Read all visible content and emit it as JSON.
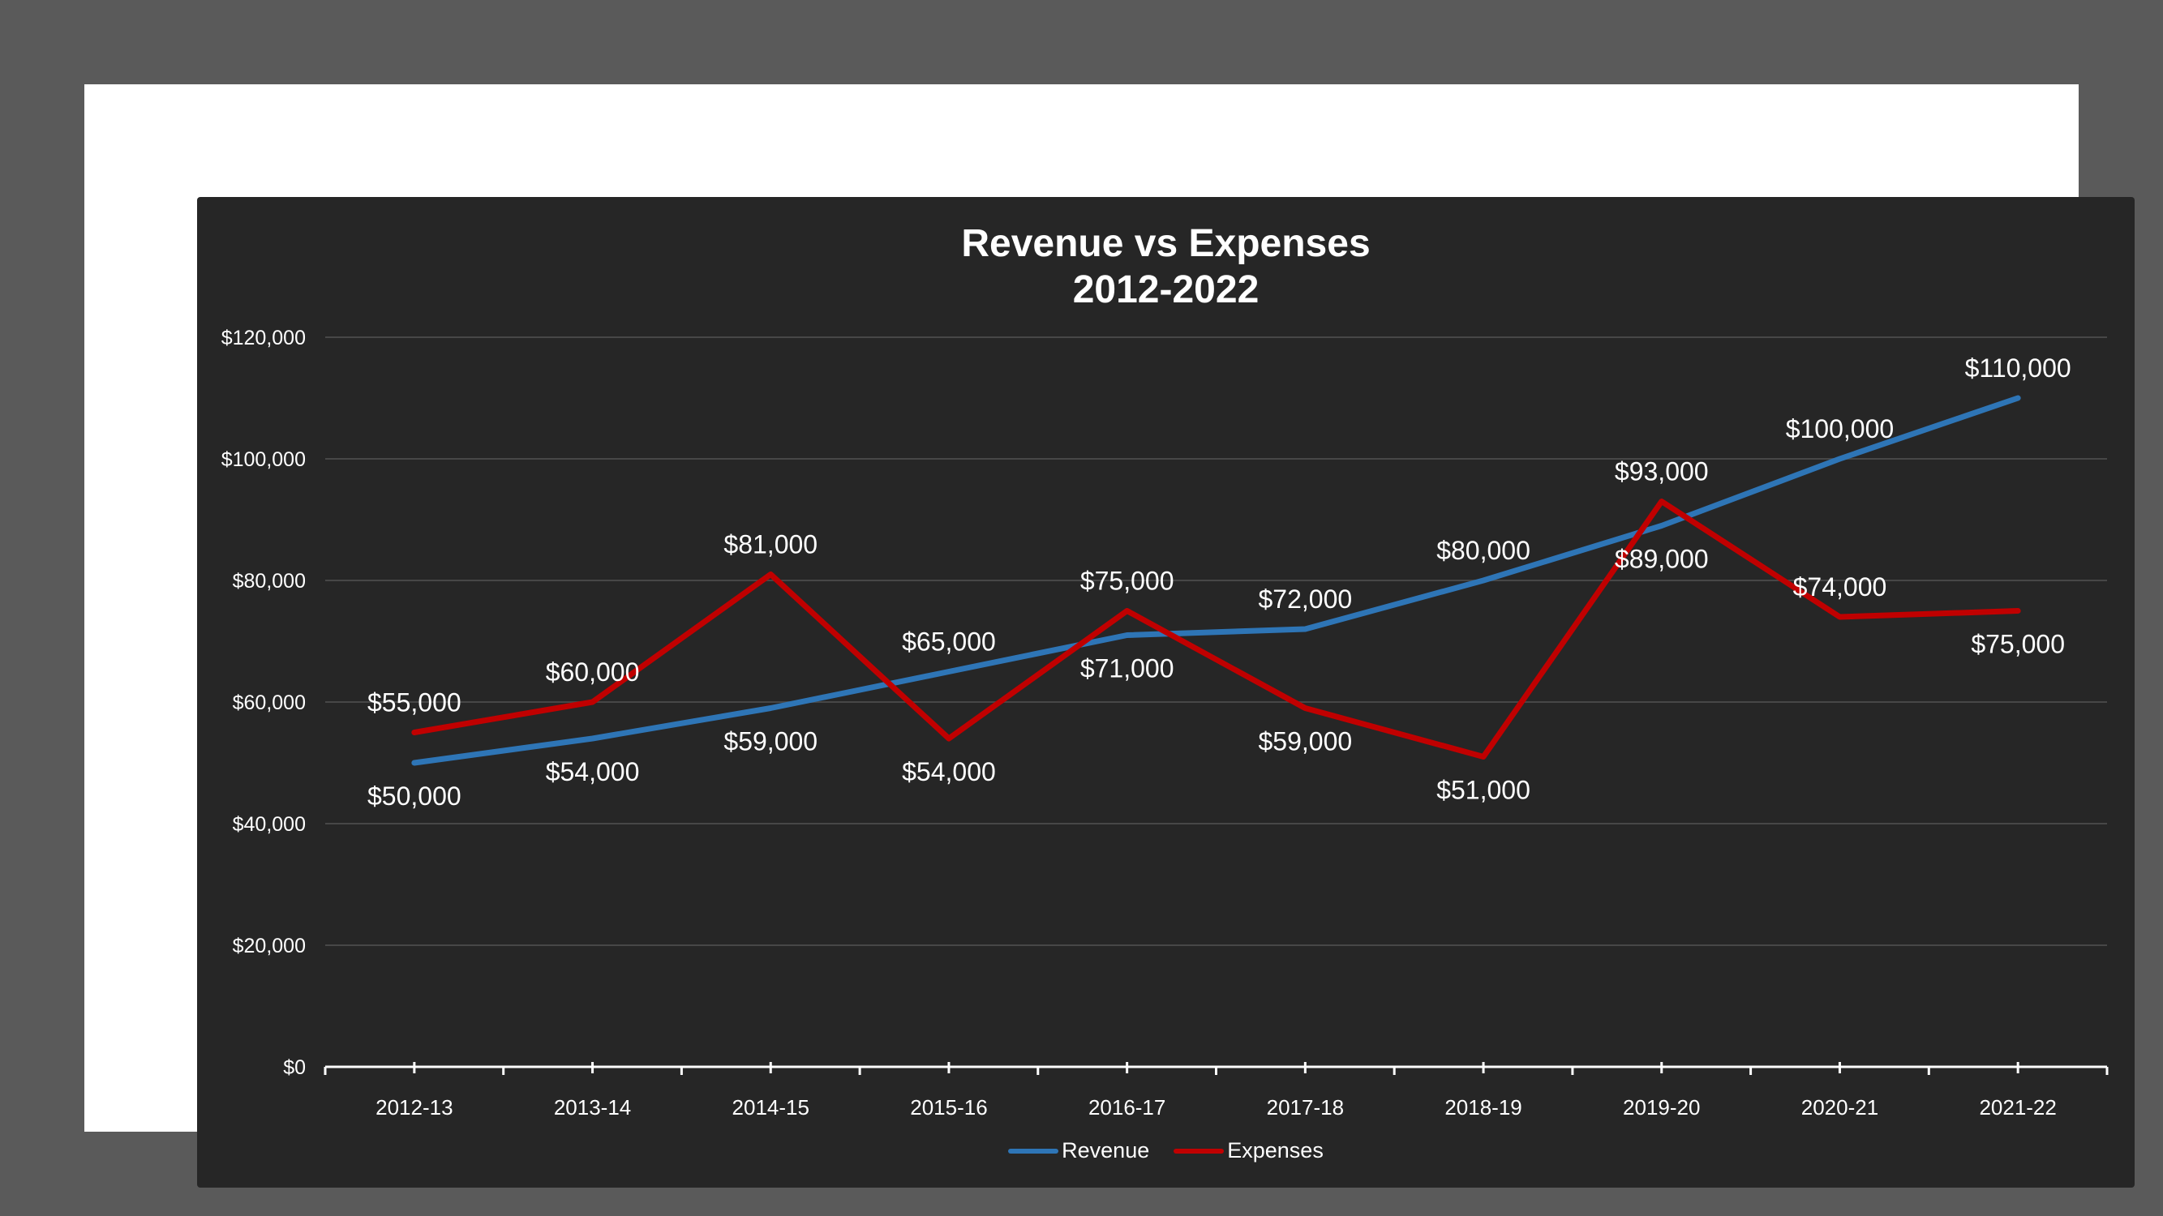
{
  "chart_data": {
    "type": "line",
    "title": [
      "Revenue vs Expenses",
      "2012-2022"
    ],
    "xlabel": "",
    "ylabel": "",
    "categories": [
      "2012-13",
      "2013-14",
      "2014-15",
      "2015-16",
      "2016-17",
      "2017-18",
      "2018-19",
      "2019-20",
      "2020-21",
      "2021-22"
    ],
    "ylim": [
      0,
      120000
    ],
    "yticks": [
      0,
      20000,
      40000,
      60000,
      80000,
      100000,
      120000
    ],
    "ytick_labels": [
      "$0",
      "$20,000",
      "$40,000",
      "$60,000",
      "$80,000",
      "$100,000",
      "$120,000"
    ],
    "grid": true,
    "legend_position": "bottom",
    "series": [
      {
        "name": "Revenue",
        "color": "#2e75b6",
        "values": [
          50000,
          54000,
          59000,
          65000,
          71000,
          72000,
          80000,
          89000,
          100000,
          110000
        ],
        "labels": [
          "$50,000",
          "$54,000",
          "$59,000",
          "$65,000",
          "$71,000",
          "$72,000",
          "$80,000",
          "$89,000",
          "$100,000",
          "$110,000"
        ],
        "label_side": [
          "below",
          "below",
          "below",
          "above",
          "below",
          "above",
          "above",
          "below",
          "above",
          "above"
        ]
      },
      {
        "name": "Expenses",
        "color": "#c00000",
        "values": [
          55000,
          60000,
          81000,
          54000,
          75000,
          59000,
          51000,
          93000,
          74000,
          75000
        ],
        "labels": [
          "$55,000",
          "$60,000",
          "$81,000",
          "$54,000",
          "$75,000",
          "$59,000",
          "$51,000",
          "$93,000",
          "$74,000",
          "$75,000"
        ],
        "label_side": [
          "above",
          "above",
          "above",
          "below",
          "above",
          "below",
          "below",
          "above",
          "above",
          "below"
        ]
      }
    ]
  }
}
